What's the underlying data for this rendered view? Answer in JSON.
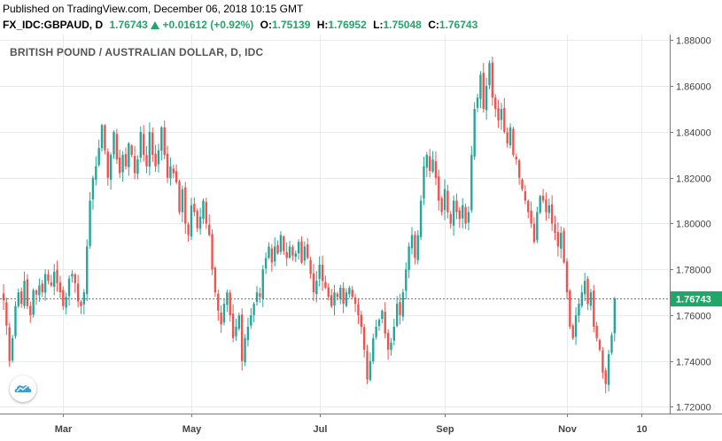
{
  "header": {
    "published": "Published on TradingView.com, December 06, 2018 10:15 GMT",
    "symbol": "FX_IDC:GBPAUD, D",
    "last": "1.76743",
    "change": "+0.01612 (+0.92%)",
    "o_label": "O:",
    "o": "1.75139",
    "h_label": "H:",
    "h": "1.76952",
    "l_label": "L:",
    "l": "1.75048",
    "c_label": "C:",
    "c": "1.76743"
  },
  "colors": {
    "up": "#26a69a",
    "down": "#ef5350",
    "price_line": "#21a66a",
    "grid": "#e8ebee",
    "axis_text": "#444444"
  },
  "icons": {
    "logo": "tradingview-cloud-icon",
    "change_arrow": "triangle-up-icon"
  },
  "chart_data": {
    "type": "candlestick",
    "title": "BRITISH POUND / AUSTRALIAN DOLLAR, D, IDC",
    "y_ticks": [
      "1.88000",
      "1.86000",
      "1.84000",
      "1.82000",
      "1.80000",
      "1.78000",
      "1.76000",
      "1.74000",
      "1.72000"
    ],
    "ylim": [
      1.7171,
      1.8825
    ],
    "x_ticks": [
      "Mar",
      "May",
      "Jul",
      "Sep",
      "Nov",
      "10"
    ],
    "x_tick_index": [
      20,
      63,
      106,
      148,
      189,
      214
    ],
    "price_label": "1.76743",
    "last_price": 1.76743,
    "grid": true,
    "closes": [
      1.7665,
      1.7555,
      1.74,
      1.75,
      1.764,
      1.77,
      1.765,
      1.775,
      1.764,
      1.76,
      1.771,
      1.769,
      1.773,
      1.77,
      1.778,
      1.775,
      1.773,
      1.779,
      1.774,
      1.77,
      1.764,
      1.768,
      1.776,
      1.778,
      1.774,
      1.766,
      1.764,
      1.77,
      1.79,
      1.81,
      1.82,
      1.825,
      1.833,
      1.843,
      1.832,
      1.82,
      1.83,
      1.84,
      1.828,
      1.822,
      1.83,
      1.825,
      1.835,
      1.83,
      1.822,
      1.828,
      1.84,
      1.83,
      1.825,
      1.84,
      1.83,
      1.825,
      1.832,
      1.842,
      1.83,
      1.82,
      1.825,
      1.822,
      1.818,
      1.805,
      1.815,
      1.8,
      1.795,
      1.808,
      1.805,
      1.798,
      1.803,
      1.81,
      1.8,
      1.795,
      1.78,
      1.77,
      1.762,
      1.756,
      1.765,
      1.77,
      1.76,
      1.75,
      1.755,
      1.76,
      1.74,
      1.75,
      1.755,
      1.76,
      1.765,
      1.77,
      1.768,
      1.78,
      1.785,
      1.79,
      1.783,
      1.79,
      1.787,
      1.795,
      1.788,
      1.785,
      1.79,
      1.786,
      1.787,
      1.792,
      1.783,
      1.79,
      1.785,
      1.778,
      1.77,
      1.775,
      1.782,
      1.775,
      1.772,
      1.768,
      1.764,
      1.77,
      1.768,
      1.772,
      1.765,
      1.77,
      1.772,
      1.768,
      1.765,
      1.76,
      1.755,
      1.745,
      1.732,
      1.74,
      1.75,
      1.755,
      1.758,
      1.762,
      1.752,
      1.745,
      1.748,
      1.755,
      1.765,
      1.76,
      1.77,
      1.78,
      1.79,
      1.795,
      1.785,
      1.795,
      1.81,
      1.825,
      1.83,
      1.823,
      1.828,
      1.82,
      1.81,
      1.805,
      1.815,
      1.805,
      1.8,
      1.81,
      1.805,
      1.802,
      1.808,
      1.8,
      1.805,
      1.83,
      1.85,
      1.855,
      1.865,
      1.85,
      1.86,
      1.87,
      1.855,
      1.85,
      1.845,
      1.85,
      1.84,
      1.835,
      1.842,
      1.83,
      1.828,
      1.82,
      1.815,
      1.81,
      1.805,
      1.8,
      1.792,
      1.805,
      1.812,
      1.81,
      1.805,
      1.808,
      1.8,
      1.796,
      1.79,
      1.796,
      1.783,
      1.77,
      1.755,
      1.75,
      1.76,
      1.765,
      1.77,
      1.775,
      1.765,
      1.77,
      1.755,
      1.75,
      1.745,
      1.735,
      1.73,
      1.743,
      1.7513,
      1.7674
    ]
  }
}
